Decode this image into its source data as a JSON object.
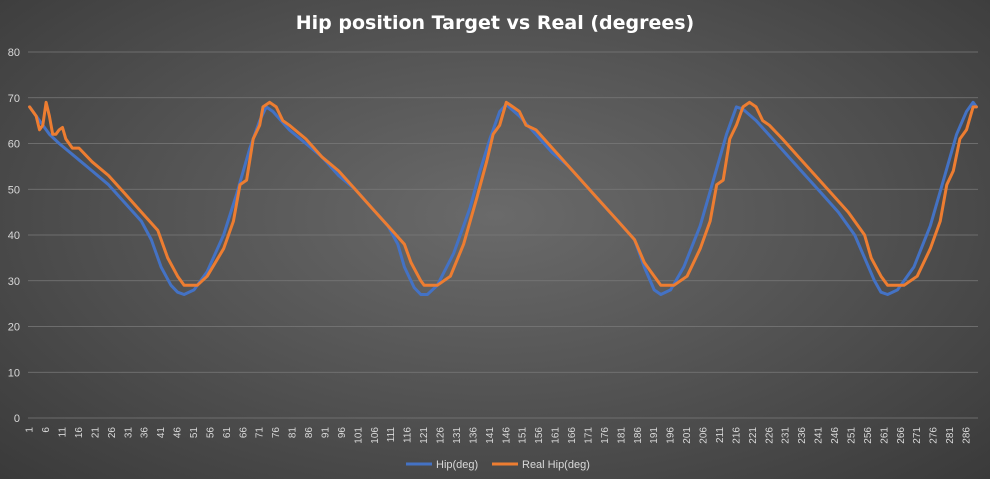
{
  "chart_data": {
    "type": "line",
    "title": "Hip position Target vs Real (degrees)",
    "xlabel": "",
    "ylabel": "",
    "ylim": [
      0,
      80
    ],
    "yticks": [
      0,
      10,
      20,
      30,
      40,
      50,
      60,
      70,
      80
    ],
    "xlim": [
      1,
      289
    ],
    "xticks": [
      1,
      6,
      11,
      16,
      21,
      26,
      31,
      36,
      41,
      46,
      51,
      56,
      61,
      66,
      71,
      76,
      81,
      86,
      91,
      96,
      101,
      106,
      111,
      116,
      121,
      126,
      131,
      136,
      141,
      146,
      151,
      156,
      161,
      166,
      171,
      176,
      181,
      186,
      191,
      196,
      201,
      206,
      211,
      216,
      221,
      226,
      231,
      236,
      241,
      246,
      251,
      256,
      261,
      266,
      271,
      276,
      281,
      286
    ],
    "grid": true,
    "legend": "bottom",
    "series": [
      {
        "name": "Hip(deg)",
        "color": "#4472c4",
        "points": [
          [
            1,
            68
          ],
          [
            4,
            65
          ],
          [
            7,
            62
          ],
          [
            10,
            60
          ],
          [
            15,
            57
          ],
          [
            20,
            54
          ],
          [
            25,
            51
          ],
          [
            30,
            47
          ],
          [
            35,
            43
          ],
          [
            38,
            39
          ],
          [
            41,
            33
          ],
          [
            44,
            29
          ],
          [
            46,
            27.5
          ],
          [
            48,
            27
          ],
          [
            51,
            28
          ],
          [
            55,
            32
          ],
          [
            60,
            40
          ],
          [
            64,
            49
          ],
          [
            68,
            59
          ],
          [
            71,
            65
          ],
          [
            73,
            68
          ],
          [
            75,
            67
          ],
          [
            80,
            63
          ],
          [
            85,
            60
          ],
          [
            90,
            57
          ],
          [
            95,
            53
          ],
          [
            100,
            50
          ],
          [
            105,
            46
          ],
          [
            110,
            42
          ],
          [
            113,
            38
          ],
          [
            115,
            33
          ],
          [
            118,
            28.5
          ],
          [
            120,
            27
          ],
          [
            122,
            27
          ],
          [
            125,
            29
          ],
          [
            130,
            36
          ],
          [
            135,
            46
          ],
          [
            138,
            54
          ],
          [
            141,
            61
          ],
          [
            144,
            67
          ],
          [
            146,
            68.5
          ],
          [
            150,
            66
          ],
          [
            155,
            62
          ],
          [
            160,
            58
          ],
          [
            165,
            55
          ],
          [
            170,
            51
          ],
          [
            175,
            47
          ],
          [
            180,
            43
          ],
          [
            185,
            39
          ],
          [
            188,
            33
          ],
          [
            191,
            28
          ],
          [
            193,
            27
          ],
          [
            196,
            28
          ],
          [
            200,
            33
          ],
          [
            205,
            42
          ],
          [
            209,
            52
          ],
          [
            213,
            62
          ],
          [
            216,
            68
          ],
          [
            218,
            67.5
          ],
          [
            222,
            65
          ],
          [
            227,
            61
          ],
          [
            232,
            57
          ],
          [
            237,
            53
          ],
          [
            242,
            49
          ],
          [
            247,
            45
          ],
          [
            252,
            40
          ],
          [
            255,
            35
          ],
          [
            258,
            30
          ],
          [
            260,
            27.5
          ],
          [
            262,
            27
          ],
          [
            265,
            28
          ],
          [
            270,
            33
          ],
          [
            275,
            42
          ],
          [
            279,
            52
          ],
          [
            283,
            62
          ],
          [
            286,
            67
          ],
          [
            288,
            69
          ],
          [
            289,
            68
          ]
        ]
      },
      {
        "name": "Real Hip(deg)",
        "color": "#ed7d31",
        "points": [
          [
            1,
            68
          ],
          [
            3,
            66
          ],
          [
            4,
            63
          ],
          [
            5,
            64
          ],
          [
            6,
            69
          ],
          [
            7,
            66
          ],
          [
            8,
            62
          ],
          [
            9,
            62
          ],
          [
            10,
            63
          ],
          [
            11,
            63.5
          ],
          [
            12,
            61
          ],
          [
            14,
            59
          ],
          [
            16,
            59
          ],
          [
            20,
            56
          ],
          [
            25,
            53
          ],
          [
            30,
            49
          ],
          [
            35,
            45
          ],
          [
            40,
            41
          ],
          [
            43,
            35
          ],
          [
            46,
            31
          ],
          [
            48,
            29
          ],
          [
            52,
            29
          ],
          [
            55,
            31
          ],
          [
            60,
            37
          ],
          [
            63,
            43
          ],
          [
            65,
            51
          ],
          [
            67,
            52
          ],
          [
            69,
            61
          ],
          [
            71,
            64
          ],
          [
            72,
            68
          ],
          [
            74,
            69
          ],
          [
            76,
            68
          ],
          [
            78,
            65
          ],
          [
            80,
            64
          ],
          [
            85,
            61
          ],
          [
            90,
            57
          ],
          [
            95,
            54
          ],
          [
            100,
            50
          ],
          [
            105,
            46
          ],
          [
            110,
            42
          ],
          [
            115,
            38
          ],
          [
            117,
            34
          ],
          [
            120,
            30
          ],
          [
            121,
            29
          ],
          [
            125,
            29
          ],
          [
            129,
            31
          ],
          [
            133,
            38
          ],
          [
            137,
            48
          ],
          [
            140,
            56
          ],
          [
            142,
            62
          ],
          [
            144,
            64
          ],
          [
            146,
            69
          ],
          [
            148,
            68
          ],
          [
            150,
            67
          ],
          [
            152,
            64
          ],
          [
            155,
            63
          ],
          [
            160,
            59
          ],
          [
            165,
            55
          ],
          [
            170,
            51
          ],
          [
            175,
            47
          ],
          [
            180,
            43
          ],
          [
            185,
            39
          ],
          [
            188,
            34
          ],
          [
            191,
            31
          ],
          [
            193,
            29
          ],
          [
            197,
            29
          ],
          [
            201,
            31
          ],
          [
            205,
            37
          ],
          [
            208,
            43
          ],
          [
            210,
            51
          ],
          [
            212,
            52
          ],
          [
            214,
            61
          ],
          [
            216,
            64
          ],
          [
            218,
            68
          ],
          [
            220,
            69
          ],
          [
            222,
            68
          ],
          [
            224,
            65
          ],
          [
            226,
            64
          ],
          [
            230,
            61
          ],
          [
            235,
            57
          ],
          [
            240,
            53
          ],
          [
            245,
            49
          ],
          [
            250,
            45
          ],
          [
            255,
            40
          ],
          [
            257,
            35
          ],
          [
            260,
            31
          ],
          [
            262,
            29
          ],
          [
            267,
            29
          ],
          [
            271,
            31
          ],
          [
            275,
            37
          ],
          [
            278,
            43
          ],
          [
            280,
            51
          ],
          [
            282,
            54
          ],
          [
            284,
            61
          ],
          [
            286,
            63
          ],
          [
            288,
            68
          ],
          [
            289,
            68
          ]
        ]
      }
    ]
  }
}
